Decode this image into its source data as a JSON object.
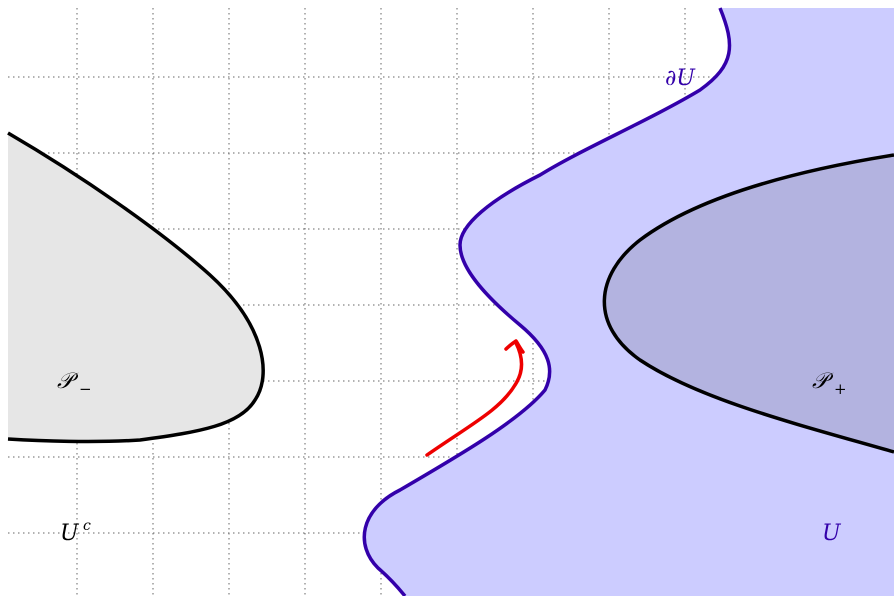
{
  "labels": {
    "boundary_U": "∂U",
    "region_U": "U",
    "complement": "U",
    "complement_sup": "c",
    "p_minus": "𝒫",
    "p_minus_sub": "−",
    "p_plus": "𝒫",
    "p_plus_sub": "+"
  },
  "colors": {
    "region_U_fill": "#ccccff",
    "boundary_U_stroke": "#3300aa",
    "p_minus_fill": "#e6e6e6",
    "p_plus_fill": "#b3b3e0",
    "curve_stroke": "#000000",
    "arrow": "#ee0000",
    "grid": "#666666",
    "label_U": "#3300aa",
    "label_text": "#000000"
  }
}
